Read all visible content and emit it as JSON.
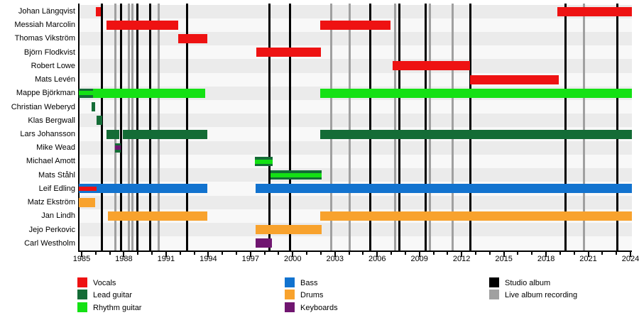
{
  "chart_data": {
    "type": "timeline",
    "description": "Band members timeline (Gantt-style) with role-colored bars and album release lines",
    "x_axis": {
      "min_year": 1984.8,
      "max_year": 2024.1,
      "label_years": [
        1985,
        1988,
        1991,
        1994,
        1997,
        2000,
        2003,
        2006,
        2009,
        2012,
        2015,
        2018,
        2021,
        2024
      ],
      "minor_tick_every": 1,
      "grid": false
    },
    "colors": {
      "vocals": "#ee1212",
      "lead_guitar": "#146c36",
      "rhythm_guitar": "#14e114",
      "bass": "#1273cf",
      "drums": "#f8a22d",
      "keyboards": "#701670",
      "studio_album": "#000000",
      "live_album": "#a0a0a0",
      "row_stripe_dark": "#ebebeb",
      "row_stripe_light": "#f8f8f8"
    },
    "members": [
      {
        "name": "Johan Längqvist",
        "segments": [
          {
            "start": 1986.0,
            "end": 1986.35,
            "role": "vocals"
          },
          {
            "start": 2018.8,
            "end": 2024.1,
            "role": "vocals"
          }
        ]
      },
      {
        "name": "Messiah Marcolin",
        "segments": [
          {
            "start": 1986.75,
            "end": 1991.85,
            "role": "vocals"
          },
          {
            "start": 2001.95,
            "end": 2006.95,
            "role": "vocals"
          }
        ]
      },
      {
        "name": "Thomas Vikström",
        "segments": [
          {
            "start": 1991.85,
            "end": 1993.95,
            "role": "vocals"
          }
        ]
      },
      {
        "name": "Björn Flodkvist",
        "segments": [
          {
            "start": 1997.4,
            "end": 2002.0,
            "role": "vocals"
          }
        ]
      },
      {
        "name": "Robert Lowe",
        "segments": [
          {
            "start": 2007.1,
            "end": 2012.6,
            "role": "vocals"
          }
        ]
      },
      {
        "name": "Mats Levén",
        "segments": [
          {
            "start": 2012.6,
            "end": 2018.9,
            "role": "vocals"
          }
        ]
      },
      {
        "name": "Mappe Björkman",
        "segments": [
          {
            "start": 1984.8,
            "end": 1985.8,
            "role": "lead_guitar",
            "stripe": "rhythm_guitar"
          },
          {
            "start": 1985.8,
            "end": 1993.8,
            "role": "rhythm_guitar"
          },
          {
            "start": 2001.95,
            "end": 2024.1,
            "role": "rhythm_guitar"
          }
        ]
      },
      {
        "name": "Christian Weberyd",
        "segments": [
          {
            "start": 1985.72,
            "end": 1985.95,
            "role": "lead_guitar"
          }
        ]
      },
      {
        "name": "Klas Bergwall",
        "segments": [
          {
            "start": 1986.05,
            "end": 1986.45,
            "role": "lead_guitar"
          }
        ]
      },
      {
        "name": "Lars Johansson",
        "segments": [
          {
            "start": 1986.75,
            "end": 1987.7,
            "role": "lead_guitar"
          },
          {
            "start": 1987.92,
            "end": 1993.95,
            "role": "lead_guitar"
          },
          {
            "start": 2001.95,
            "end": 2024.1,
            "role": "lead_guitar"
          }
        ]
      },
      {
        "name": "Mike Wead",
        "segments": [
          {
            "start": 1987.35,
            "end": 1987.8,
            "role": "lead_guitar",
            "stripe": "keyboards"
          }
        ]
      },
      {
        "name": "Michael Amott",
        "segments": [
          {
            "start": 1997.3,
            "end": 1998.55,
            "role": "lead_guitar",
            "stripe": "rhythm_guitar"
          }
        ]
      },
      {
        "name": "Mats Ståhl",
        "segments": [
          {
            "start": 1998.42,
            "end": 2002.05,
            "role": "lead_guitar",
            "stripe": "rhythm_guitar"
          }
        ]
      },
      {
        "name": "Leif Edling",
        "segments": [
          {
            "start": 1984.8,
            "end": 1986.05,
            "role": "bass",
            "stripe": "vocals"
          },
          {
            "start": 1986.05,
            "end": 1993.95,
            "role": "bass"
          },
          {
            "start": 1997.35,
            "end": 2024.1,
            "role": "bass"
          }
        ]
      },
      {
        "name": "Matz Ekström",
        "segments": [
          {
            "start": 1984.8,
            "end": 1985.95,
            "role": "drums"
          }
        ]
      },
      {
        "name": "Jan Lindh",
        "segments": [
          {
            "start": 1986.85,
            "end": 1993.95,
            "role": "drums"
          },
          {
            "start": 2001.95,
            "end": 2024.1,
            "role": "drums"
          }
        ]
      },
      {
        "name": "Jejo Perkovic",
        "segments": [
          {
            "start": 1997.35,
            "end": 2002.05,
            "role": "drums"
          }
        ]
      },
      {
        "name": "Carl Westholm",
        "segments": [
          {
            "start": 1997.35,
            "end": 1998.5,
            "role": "keyboards"
          }
        ]
      }
    ],
    "albums": {
      "studio": [
        1986.45,
        1987.82,
        1988.95,
        1989.85,
        1992.5,
        1998.35,
        1999.8,
        2005.5,
        2007.6,
        2009.45,
        2012.6,
        2019.4,
        2023.05
      ],
      "live": [
        1987.4,
        1988.38,
        1988.6,
        1990.5,
        2002.75,
        2004.05,
        2007.3,
        2009.75,
        2011.35,
        2020.7
      ]
    }
  },
  "legend": {
    "columns": [
      {
        "items": [
          {
            "label": "Vocals",
            "color": "vocals"
          },
          {
            "label": "Lead guitar",
            "color": "lead_guitar"
          },
          {
            "label": "Rhythm guitar",
            "color": "rhythm_guitar"
          }
        ]
      },
      {
        "items": [
          {
            "label": "Bass",
            "color": "bass"
          },
          {
            "label": "Drums",
            "color": "drums"
          },
          {
            "label": "Keyboards",
            "color": "keyboards"
          }
        ]
      },
      {
        "items": [
          {
            "label": "Studio album",
            "color": "studio_album"
          },
          {
            "label": "Live album recording",
            "color": "live_album"
          }
        ]
      }
    ]
  }
}
